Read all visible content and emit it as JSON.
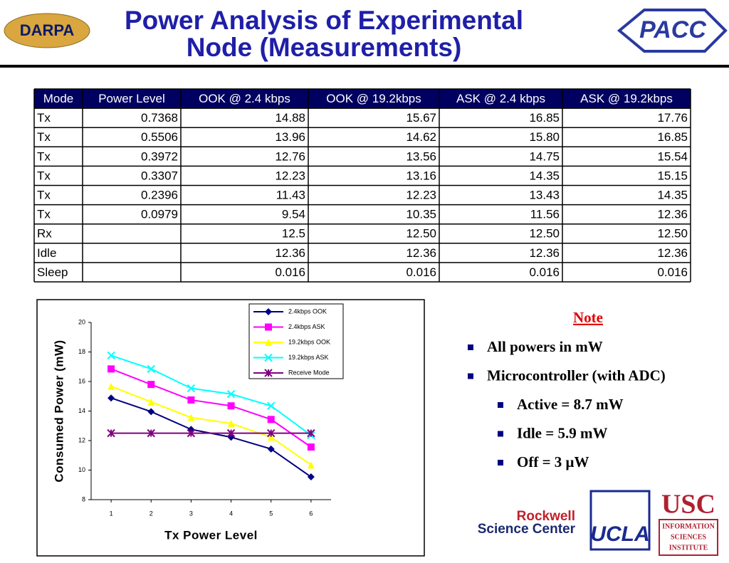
{
  "header": {
    "title": "Power Analysis of Experimental Node (Measurements)"
  },
  "logos": {
    "darpa": "DARPA",
    "pacc": "PACC",
    "rockwell_1": "Rockwell",
    "rockwell_2": "Science Center",
    "ucla": "UCLA",
    "usc": "USC",
    "isi": [
      "INFORMATION",
      "SCIENCES",
      "INSTITUTE"
    ]
  },
  "table": {
    "columns": [
      "Mode",
      "Power Level",
      "OOK @ 2.4 kbps",
      "OOK @ 19.2kbps",
      "ASK @ 2.4 kbps",
      "ASK @ 19.2kbps"
    ],
    "rows": [
      [
        "Tx",
        "0.7368",
        "14.88",
        "15.67",
        "16.85",
        "17.76"
      ],
      [
        "Tx",
        "0.5506",
        "13.96",
        "14.62",
        "15.80",
        "16.85"
      ],
      [
        "Tx",
        "0.3972",
        "12.76",
        "13.56",
        "14.75",
        "15.54"
      ],
      [
        "Tx",
        "0.3307",
        "12.23",
        "13.16",
        "14.35",
        "15.15"
      ],
      [
        "Tx",
        "0.2396",
        "11.43",
        "12.23",
        "13.43",
        "14.35"
      ],
      [
        "Tx",
        "0.0979",
        "9.54",
        "10.35",
        "11.56",
        "12.36"
      ],
      [
        "Rx",
        null,
        "12.5",
        "12.50",
        "12.50",
        "12.50"
      ],
      [
        "Idle",
        null,
        "12.36",
        "12.36",
        "12.36",
        "12.36"
      ],
      [
        "Sleep",
        null,
        "0.016",
        "0.016",
        "0.016",
        "0.016"
      ]
    ]
  },
  "chart_data": {
    "type": "line",
    "x_label": "Tx Power Level",
    "y_label": "Consumed Power (mW)",
    "x": [
      1,
      2,
      3,
      4,
      5,
      6
    ],
    "xlim": [
      0.5,
      6.5
    ],
    "xticks": [
      1,
      2,
      3,
      4,
      5,
      6
    ],
    "ylim": [
      8,
      20
    ],
    "yticks": [
      8,
      10,
      12,
      14,
      16,
      18,
      20
    ],
    "series": [
      {
        "name": "2.4kbps OOK",
        "color": "#000080",
        "marker": "diamond",
        "values": [
          14.88,
          13.96,
          12.76,
          12.23,
          11.43,
          9.54
        ]
      },
      {
        "name": "2.4kbps ASK",
        "color": "#ff00ff",
        "marker": "square",
        "values": [
          16.85,
          15.8,
          14.75,
          14.35,
          13.43,
          11.56
        ]
      },
      {
        "name": "19.2kbps OOK",
        "color": "#ffff00",
        "marker": "triangle",
        "values": [
          15.67,
          14.62,
          13.56,
          13.16,
          12.23,
          10.35
        ]
      },
      {
        "name": "19.2kbps ASK",
        "color": "#00ffff",
        "marker": "x",
        "values": [
          17.76,
          16.85,
          15.54,
          15.15,
          14.35,
          12.36
        ]
      },
      {
        "name": "Receive Mode",
        "color": "#800080",
        "marker": "star",
        "values": [
          12.5,
          12.5,
          12.5,
          12.5,
          12.5,
          12.5
        ]
      }
    ]
  },
  "notes": {
    "heading": "Note",
    "items": [
      {
        "text": "All powers in mW",
        "level": 0
      },
      {
        "text": "Microcontroller (with ADC)",
        "level": 0
      },
      {
        "text": "Active = 8.7 mW",
        "level": 1
      },
      {
        "text": "Idle = 5.9 mW",
        "level": 1
      },
      {
        "text": "Off = 3 μW",
        "level": 1
      }
    ]
  }
}
